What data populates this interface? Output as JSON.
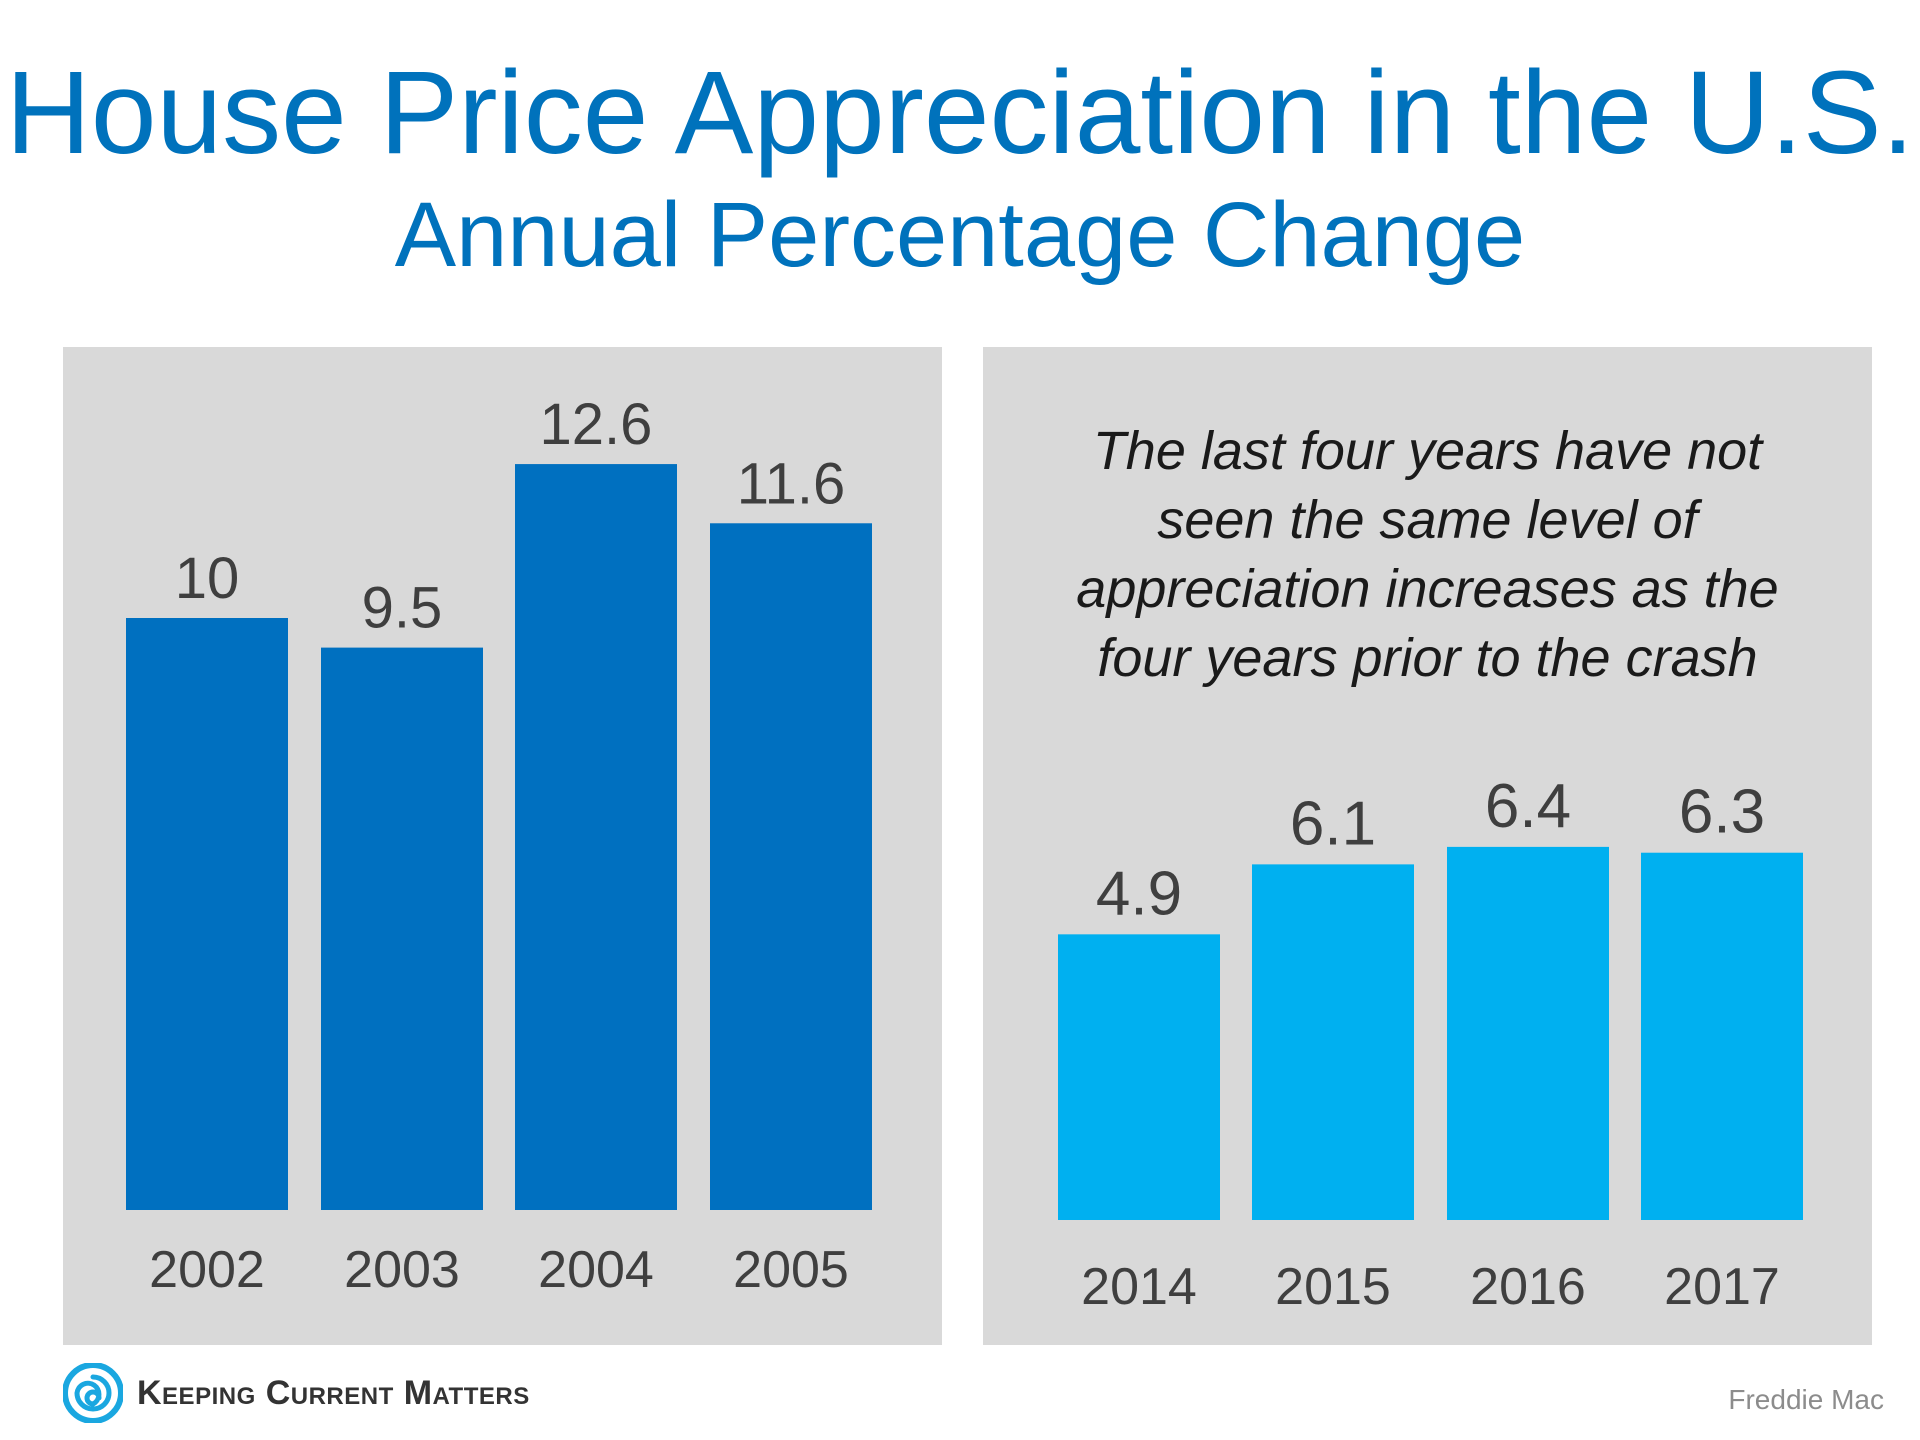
{
  "title": "House Price Appreciation in the U.S.",
  "subtitle": "Annual Percentage Change",
  "annotation": "The last four years have not\nseen the same level of\nappreciation increases as the\nfour years prior to the crash",
  "footer": {
    "brand": "Keeping Current Matters",
    "source": "Freddie Mac",
    "logo_icon": "spiral-logo-icon"
  },
  "colors": {
    "title": "#0072bc",
    "panel_background": "#d9d9d9",
    "left_bars": "#0070c0",
    "right_bars": "#00b0f0",
    "labels": "#3f3f3f"
  },
  "chart_data": [
    {
      "type": "bar",
      "categories": [
        "2002",
        "2003",
        "2004",
        "2005"
      ],
      "values": [
        10,
        9.5,
        12.6,
        11.6
      ],
      "value_labels": [
        "10",
        "9.5",
        "12.6",
        "11.6"
      ],
      "color": "#0070c0",
      "ylim": [
        0,
        14
      ],
      "grid": false
    },
    {
      "type": "bar",
      "categories": [
        "2014",
        "2015",
        "2016",
        "2017"
      ],
      "values": [
        4.9,
        6.1,
        6.4,
        6.3
      ],
      "value_labels": [
        "4.9",
        "6.1",
        "6.4",
        "6.3"
      ],
      "color": "#00b0f0",
      "ylim": [
        0,
        14
      ],
      "grid": false
    }
  ]
}
